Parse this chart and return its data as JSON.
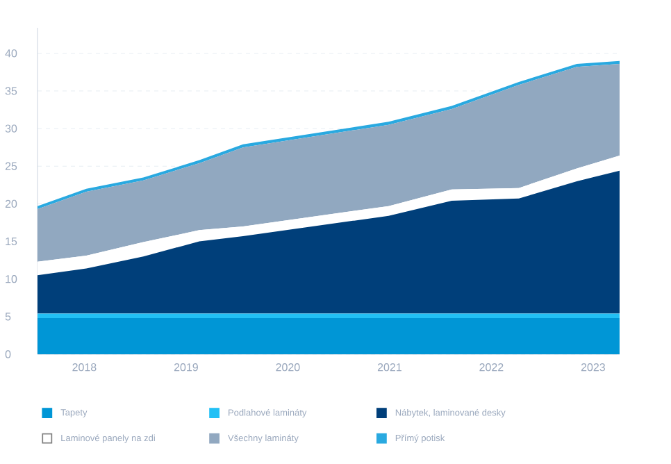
{
  "chart_data": {
    "type": "area",
    "stacked": true,
    "x": [
      2017.54,
      2018.02,
      2018.58,
      2019.13,
      2019.56,
      2020.99,
      2021.61,
      2022.27,
      2022.84,
      2023.26
    ],
    "series": [
      {
        "name": "Tapety",
        "color": "#0096d6",
        "values": [
          4.8,
          4.8,
          4.8,
          4.8,
          4.8,
          4.8,
          4.8,
          4.8,
          4.8,
          4.8
        ]
      },
      {
        "name": "Podlahové lamináty",
        "color": "#22c0f5",
        "values": [
          0.6,
          0.6,
          0.6,
          0.6,
          0.6,
          0.6,
          0.6,
          0.6,
          0.6,
          0.6
        ]
      },
      {
        "name": "Nábytek, laminované desky",
        "color": "#003f7a",
        "values": [
          5.1,
          6.0,
          7.6,
          9.6,
          10.3,
          13.0,
          15.0,
          15.3,
          17.6,
          19.0
        ]
      },
      {
        "name": "Laminové panely na zdi",
        "color": "#ffffff",
        "values": [
          1.8,
          1.7,
          1.9,
          1.5,
          1.3,
          1.3,
          1.5,
          1.4,
          1.7,
          2.0
        ]
      },
      {
        "name": "Všechny lamináty",
        "color": "#91a8c0",
        "values": [
          7.0,
          8.5,
          8.2,
          8.9,
          10.5,
          10.8,
          10.7,
          13.7,
          13.5,
          12.2
        ]
      },
      {
        "name": "Přímý potisk",
        "color": "#29a9e0",
        "values": [
          0.4,
          0.4,
          0.4,
          0.4,
          0.4,
          0.4,
          0.4,
          0.4,
          0.4,
          0.4
        ]
      }
    ],
    "xlim": [
      2017.54,
      2023.26
    ],
    "xticks": [
      2018,
      2019,
      2020,
      2021,
      2022,
      2023
    ],
    "ylim": [
      0,
      43.4
    ],
    "yticks": [
      0,
      5,
      10,
      15,
      20,
      25,
      30,
      35,
      40
    ],
    "grid": "y",
    "legend": "bottom"
  }
}
